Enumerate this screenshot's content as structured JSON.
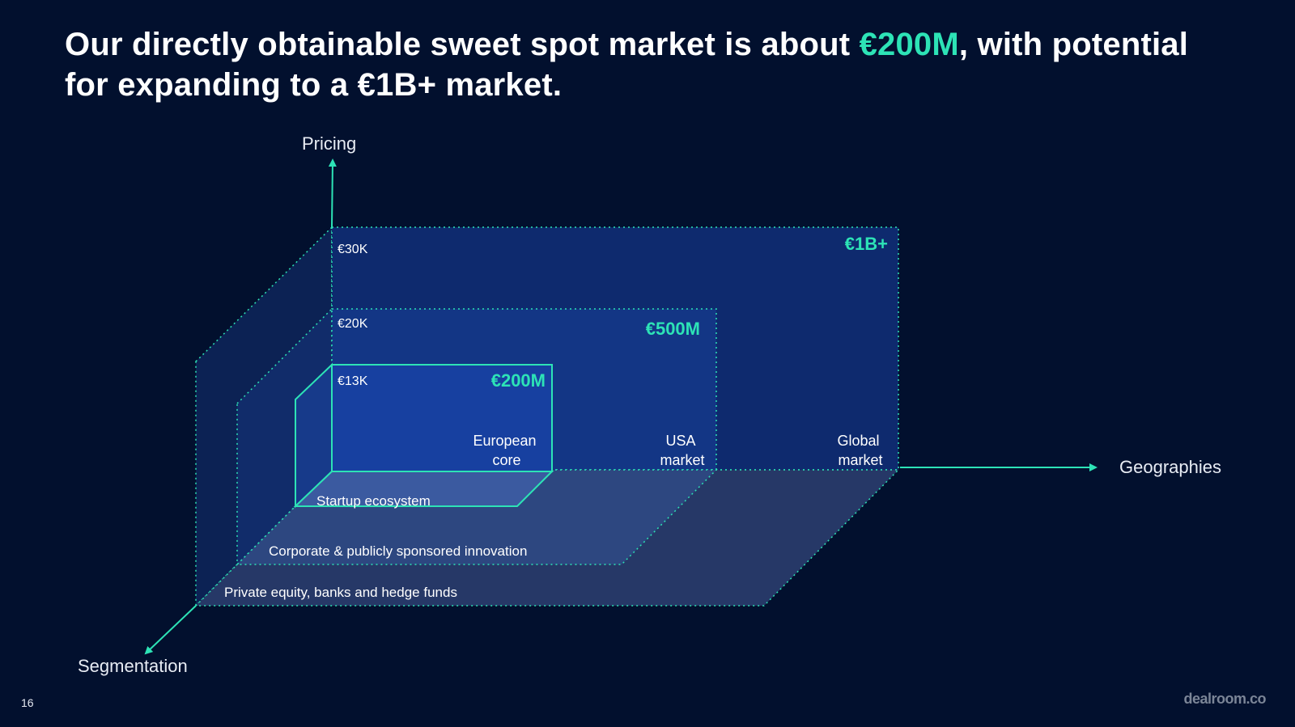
{
  "slide": {
    "title_part1": "Our directly obtainable sweet spot market is about ",
    "title_highlight": "€200M",
    "title_part2": ", with potential for expanding to a €1B+ market.",
    "page_number": "16",
    "brand": "dealroom.co"
  },
  "colors": {
    "background": "#02102e",
    "accent": "#2de3b6",
    "text": "#ffffff"
  },
  "axes": {
    "pricing": "Pricing",
    "geographies": "Geographies",
    "segmentation": "Segmentation"
  },
  "markets": {
    "large": {
      "value": "€1B+",
      "price": "€30K",
      "geo": [
        "Global",
        "market"
      ],
      "segment": "Private equity, banks and hedge funds"
    },
    "medium": {
      "value": "€500M",
      "price": "€20K",
      "geo": [
        "USA",
        "market"
      ],
      "segment": "Corporate & publicly sponsored innovation"
    },
    "small": {
      "value": "€200M",
      "price": "€13K",
      "geo": [
        "European",
        "core"
      ],
      "segment": "Startup ecosystem"
    }
  }
}
